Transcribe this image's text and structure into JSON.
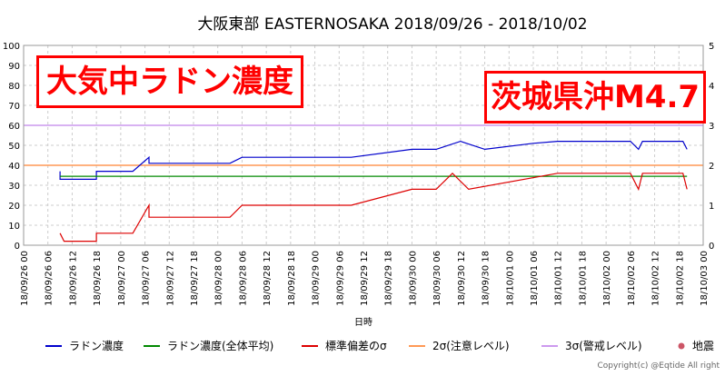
{
  "chart_data": {
    "type": "line",
    "title": "大阪東部 EASTERNOSAKA 2018/09/26 - 2018/10/02",
    "xlabel": "日時",
    "ylabel_right": "",
    "ylim_left": [
      0,
      100
    ],
    "ylim_right": [
      0,
      5
    ],
    "yticks_left": [
      "0",
      "10",
      "20",
      "30",
      "40",
      "50",
      "60",
      "70",
      "80",
      "90",
      "100"
    ],
    "yticks_right": [
      "0",
      "1",
      "2",
      "3",
      "4",
      "5"
    ],
    "x_start": "2018-09-26T00:00",
    "x_end": "2018-10-03T00:00",
    "x_tick_labels": [
      "18/09/26 00",
      "18/09/26 06",
      "18/09/26 12",
      "18/09/26 18",
      "18/09/27 00",
      "18/09/27 06",
      "18/09/27 12",
      "18/09/27 18",
      "18/09/28 00",
      "18/09/28 06",
      "18/09/28 12",
      "18/09/28 18",
      "18/09/29 00",
      "18/09/29 06",
      "18/09/29 12",
      "18/09/29 18",
      "18/09/30 00",
      "18/09/30 06",
      "18/09/30 12",
      "18/09/30 18",
      "18/10/01 00",
      "18/10/01 06",
      "18/10/01 12",
      "18/10/01 18",
      "18/10/02 00",
      "18/10/02 06",
      "18/10/02 12",
      "18/10/02 18",
      "18/10/03 00"
    ],
    "grid": true,
    "legend_position": "bottom",
    "series": [
      {
        "name": "ラドン濃度",
        "color": "#0000cc",
        "points": [
          [
            "2018-09-26T09:00",
            37
          ],
          [
            "2018-09-26T09:00",
            33
          ],
          [
            "2018-09-26T18:00",
            33
          ],
          [
            "2018-09-26T18:00",
            37
          ],
          [
            "2018-09-27T03:00",
            37
          ],
          [
            "2018-09-27T07:00",
            44
          ],
          [
            "2018-09-27T07:00",
            41
          ],
          [
            "2018-09-28T03:00",
            41
          ],
          [
            "2018-09-28T06:00",
            44
          ],
          [
            "2018-09-29T09:00",
            44
          ],
          [
            "2018-09-30T00:00",
            48
          ],
          [
            "2018-09-30T06:00",
            48
          ],
          [
            "2018-09-30T12:00",
            52
          ],
          [
            "2018-09-30T18:00",
            48
          ],
          [
            "2018-10-01T06:00",
            51
          ],
          [
            "2018-10-01T12:00",
            52
          ],
          [
            "2018-10-02T06:00",
            52
          ],
          [
            "2018-10-02T08:00",
            48
          ],
          [
            "2018-10-02T09:00",
            52
          ],
          [
            "2018-10-02T19:00",
            52
          ],
          [
            "2018-10-02T20:00",
            48
          ]
        ]
      },
      {
        "name": "ラドン濃度(全体平均)",
        "color": "#008800",
        "points": [
          [
            "2018-09-26T09:00",
            34.5
          ],
          [
            "2018-10-02T20:00",
            34.5
          ]
        ]
      },
      {
        "name": "標準偏差のσ",
        "color": "#dd0000",
        "points": [
          [
            "2018-09-26T09:00",
            6
          ],
          [
            "2018-09-26T10:00",
            2
          ],
          [
            "2018-09-26T18:00",
            2
          ],
          [
            "2018-09-26T18:00",
            6
          ],
          [
            "2018-09-27T03:00",
            6
          ],
          [
            "2018-09-27T07:00",
            20
          ],
          [
            "2018-09-27T07:00",
            14
          ],
          [
            "2018-09-28T03:00",
            14
          ],
          [
            "2018-09-28T06:00",
            20
          ],
          [
            "2018-09-29T09:00",
            20
          ],
          [
            "2018-09-30T00:00",
            28
          ],
          [
            "2018-09-30T06:00",
            28
          ],
          [
            "2018-09-30T10:00",
            36
          ],
          [
            "2018-09-30T14:00",
            28
          ],
          [
            "2018-10-01T12:00",
            36
          ],
          [
            "2018-10-02T06:00",
            36
          ],
          [
            "2018-10-02T08:00",
            28
          ],
          [
            "2018-10-02T09:00",
            36
          ],
          [
            "2018-10-02T19:00",
            36
          ],
          [
            "2018-10-02T20:00",
            28
          ]
        ]
      },
      {
        "name": "2σ(注意レベル)",
        "color": "#ff9955",
        "axis": "right",
        "value": 2
      },
      {
        "name": "3σ(警戒レベル)",
        "color": "#cc99ee",
        "axis": "right",
        "value": 3
      },
      {
        "name": "地震",
        "color": "#cc5566",
        "marker": "dot"
      }
    ],
    "annotations": [
      "大気中ラドン濃度",
      "茨城県沖M4.7"
    ],
    "copyright": "Copyright(c) @Eqtide All right"
  }
}
